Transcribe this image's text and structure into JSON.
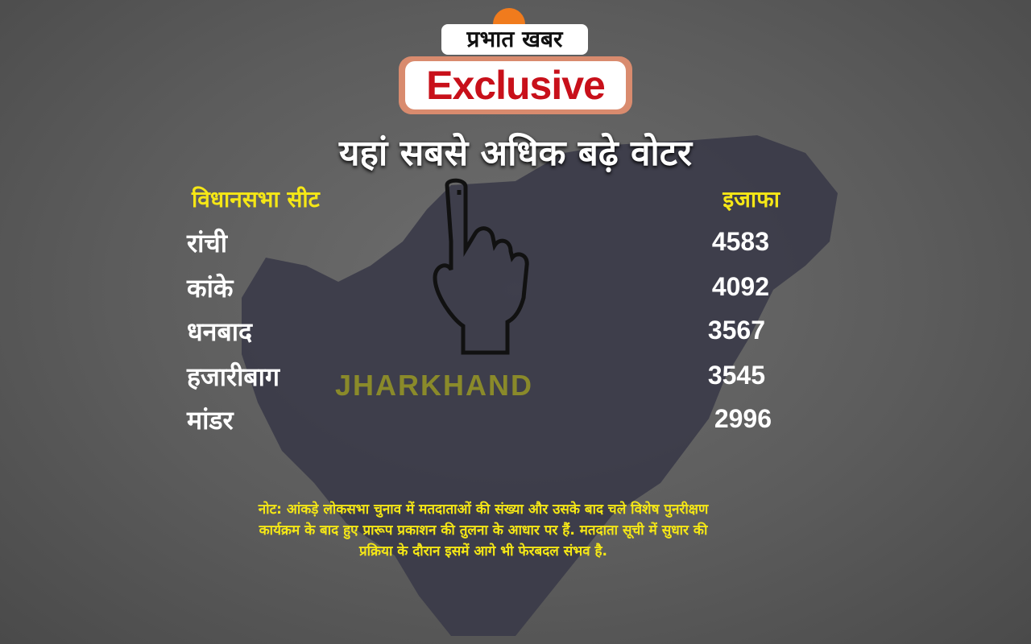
{
  "brand": {
    "logo_text": "प्रभात खबर",
    "tag": "Exclusive"
  },
  "headline": "यहां सबसे अधिक बढ़े वोटर",
  "table": {
    "headers": [
      "विधानसभा सीट",
      "इजाफा"
    ],
    "rows": [
      {
        "seat": "रांची",
        "increase": "4583"
      },
      {
        "seat": "कांके",
        "increase": "4092"
      },
      {
        "seat": "धनबाद",
        "increase": "3567"
      },
      {
        "seat": "हजारीबाग",
        "increase": "3545"
      },
      {
        "seat": "मांडर",
        "increase": "2996"
      }
    ]
  },
  "map_label": "JHARKHAND",
  "note": "नोट: आंकड़े लोकसभा चुनाव में मतदाताओं की संख्या और उसके बाद चले विशेष पुनरीक्षण कार्यक्रम के बाद हुए प्रारूप प्रकाशन की तुलना के आधार पर हैं. मतदाता सूची में सुधार की प्रक्रिया के दौरान इसमें आगे भी फेरबदल संभव है.",
  "colors": {
    "accent_yellow": "#f5e716",
    "exclusive_red": "#c8101a",
    "map_fill": "#3a3a48",
    "background": "#5c5c5c"
  }
}
